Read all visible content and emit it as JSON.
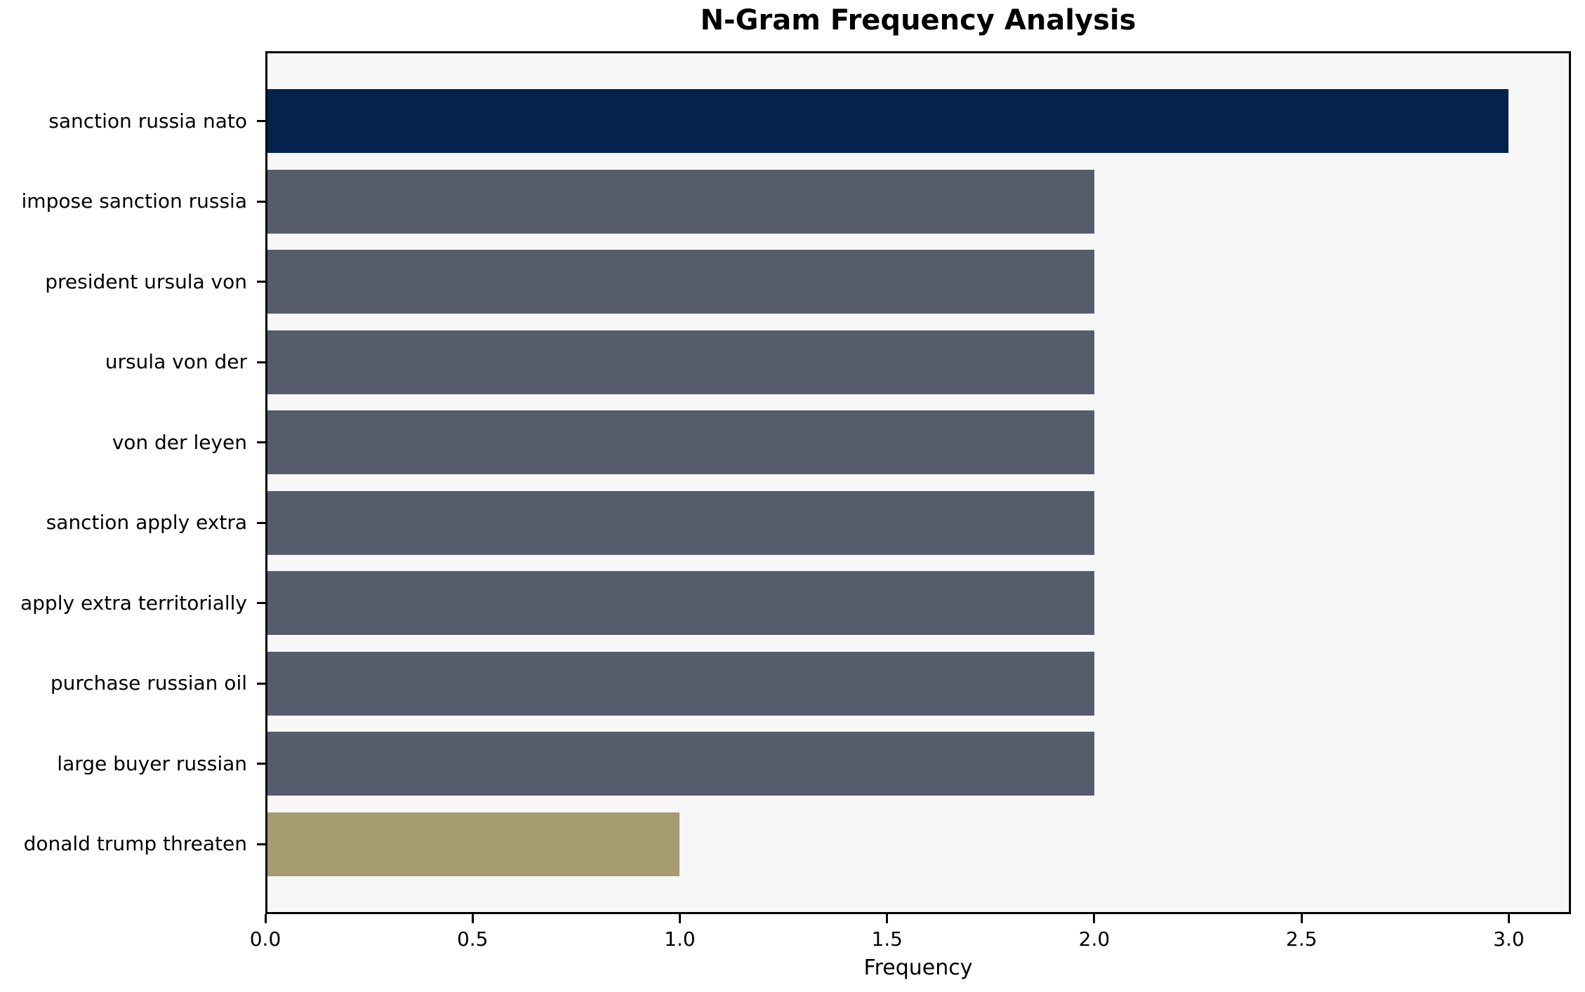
{
  "chart_data": {
    "type": "bar",
    "orientation": "horizontal",
    "title": "N-Gram Frequency Analysis",
    "xlabel": "Frequency",
    "ylabel": "",
    "categories": [
      "sanction russia nato",
      "impose sanction russia",
      "president ursula von",
      "ursula von der",
      "von der leyen",
      "sanction apply extra",
      "apply extra territorially",
      "purchase russian oil",
      "large buyer russian",
      "donald trump threaten"
    ],
    "values": [
      3,
      2,
      2,
      2,
      2,
      2,
      2,
      2,
      2,
      1
    ],
    "bar_colors": [
      "#03234e",
      "#565c6b",
      "#565c6b",
      "#565c6b",
      "#565c6b",
      "#565c6b",
      "#565c6b",
      "#565c6b",
      "#565c6b",
      "#a59c72"
    ],
    "xticks": [
      "0.0",
      "0.5",
      "1.0",
      "1.5",
      "2.0",
      "2.5",
      "3.0"
    ],
    "xtick_values": [
      0,
      0.5,
      1,
      1.5,
      2,
      2.5,
      3
    ],
    "xlim": [
      0,
      3.15
    ],
    "grid": false,
    "legend": null,
    "colors": {
      "plot_bg": "#f7f7f7",
      "figure_bg": "#ffffff",
      "axis": "#000000"
    }
  }
}
